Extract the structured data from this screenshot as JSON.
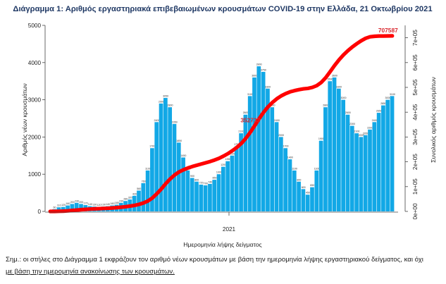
{
  "note": {
    "line1": "Σημ.: οι στήλες στο Διάγραμμα 1 εκφράζουν τον αριθμό νέων κρουσμάτων με βάση την ημερομηνία λήψης εργαστηριακού δείγματος, και όχι",
    "line2": "με βάση την ημερομηνία ανακοίνωσης των κρουσμάτων."
  },
  "colors": {
    "bars": "#12a8e6",
    "line": "#ff0000"
  },
  "chart_data": {
    "type": "bar",
    "title": "Διάγραμμα 1: Αριθμός εργαστηριακά επιβεβαιωμένων κρουσμάτων COVID-19 στην Ελλάδα, 21 Οκτωβρίου 2021",
    "xlabel": "Ημερομηνία λήψης δείγματος",
    "ylabel": "Αριθμός νέων κρουσμάτων",
    "y2label": "Συνολικός αριθμός κρουσμάτων",
    "x_tick_label": "2021",
    "ylim": [
      0,
      5000
    ],
    "y_ticks": [
      "0",
      "1000",
      "2000",
      "3000",
      "4000",
      "5000"
    ],
    "y2lim": [
      0,
      750000
    ],
    "y2_ticks": [
      "0e+00",
      "1e+05",
      "2e+05",
      "3e+05",
      "4e+05",
      "5e+05",
      "6e+05",
      "7e+05"
    ],
    "annotations": [
      {
        "label": "352733",
        "series": "cumulative"
      },
      {
        "label": "707587",
        "series": "cumulative"
      }
    ],
    "weekly_new_cases": [
      0,
      60,
      110,
      120,
      160,
      200,
      230,
      200,
      170,
      140,
      130,
      120,
      130,
      140,
      160,
      180,
      230,
      280,
      320,
      420,
      560,
      760,
      1100,
      1700,
      2400,
      2900,
      3050,
      2800,
      2350,
      1850,
      1450,
      1100,
      900,
      800,
      720,
      700,
      740,
      850,
      1000,
      1200,
      1350,
      1500,
      1750,
      2100,
      2600,
      3100,
      3600,
      3900,
      3750,
      3300,
      2800,
      2400,
      2000,
      1700,
      1400,
      1100,
      800,
      600,
      450,
      650,
      1100,
      1900,
      2800,
      3500,
      3600,
      3300,
      3000,
      2600,
      2300,
      2100,
      2000,
      2050,
      2200,
      2400,
      2650,
      2850,
      3000,
      3100
    ],
    "cumulative_cases": [
      0,
      100,
      500,
      1200,
      2400,
      4000,
      5500,
      7000,
      8200,
      9300,
      10300,
      11100,
      12000,
      12900,
      14000,
      15300,
      17000,
      19000,
      21500,
      24500,
      28500,
      34000,
      42000,
      54000,
      71000,
      90000,
      112000,
      131000,
      147000,
      159000,
      168000,
      175000,
      181000,
      186000,
      191000,
      196000,
      201000,
      207000,
      214000,
      223000,
      233000,
      245000,
      258000,
      274000,
      294000,
      318000,
      345000,
      373000,
      399000,
      421000,
      439000,
      454000,
      466000,
      475000,
      482000,
      487000,
      491000,
      494000,
      496000,
      500000,
      507000,
      520000,
      539000,
      563000,
      588000,
      611000,
      631000,
      648000,
      663000,
      676000,
      688000,
      698000,
      704000,
      706000,
      707000,
      707200,
      707400,
      707587
    ]
  }
}
